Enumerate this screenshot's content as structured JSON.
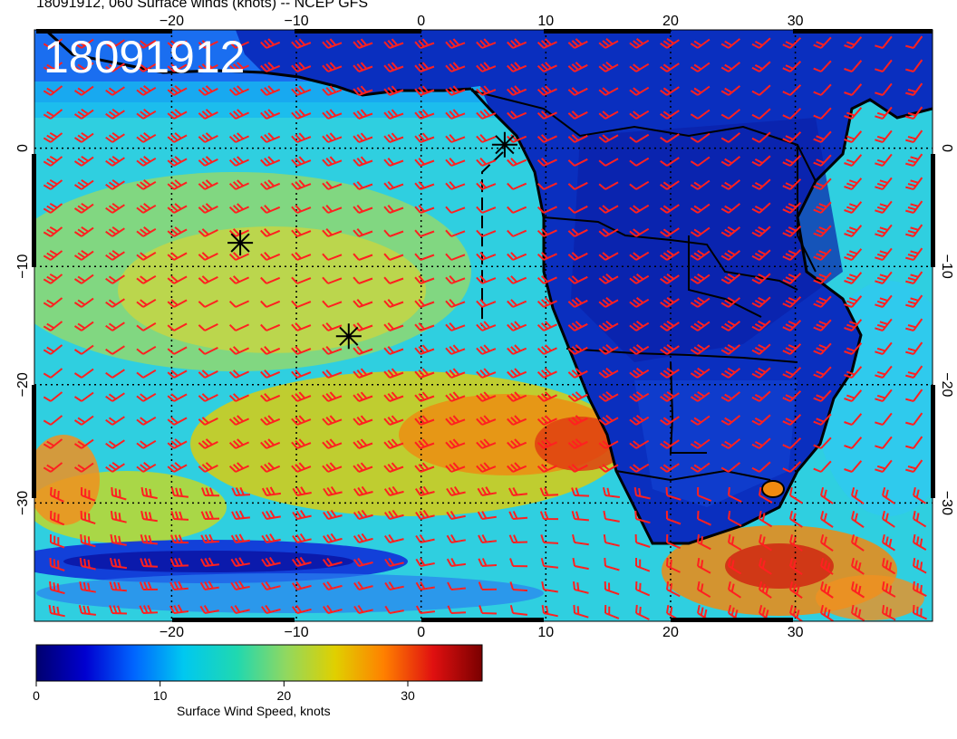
{
  "title": "18091912, 060 Surface winds (knots) -- NCEP GFS",
  "stamp": "18091912",
  "map": {
    "lon_range": [
      -31,
      41
    ],
    "lat_range": [
      -40,
      10
    ],
    "lon_ticks": [
      -20,
      -10,
      0,
      10,
      20,
      30
    ],
    "lat_ticks": [
      0,
      -10,
      -20,
      -30
    ],
    "lon_tick_labels": [
      "−20",
      "−10",
      "0",
      "10",
      "20",
      "30"
    ],
    "lat_tick_labels": [
      "0",
      "−10",
      "−20",
      "−30"
    ],
    "gridlines": "dotted",
    "land_color": "#0a2fbf",
    "barb_color": "#ff2020",
    "markers": [
      {
        "lon": 6.7,
        "lat": 0.3
      },
      {
        "lon": -14.5,
        "lat": -8.0
      },
      {
        "lon": -5.8,
        "lat": -15.9
      }
    ]
  },
  "colorbar": {
    "label": "Surface Wind Speed, knots",
    "ticks": [
      0,
      10,
      20,
      30
    ],
    "tick_labels": [
      "0",
      "10",
      "20",
      "30"
    ],
    "range": [
      0,
      36
    ],
    "colors": [
      "#00006e",
      "#0000d0",
      "#0066ff",
      "#00c8f0",
      "#20d8b0",
      "#90d860",
      "#e0d000",
      "#ff8000",
      "#e01010",
      "#7a0000"
    ]
  }
}
